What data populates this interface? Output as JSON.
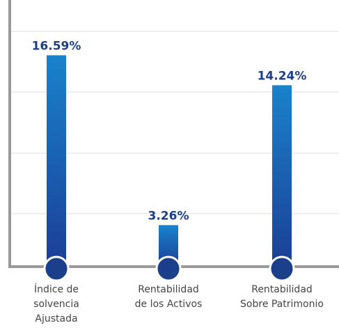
{
  "chart_data": {
    "type": "bar",
    "categories": [
      "Índice de\nsolvencia\nAjustada",
      "Rentabilidad\nde los Activos",
      "Rentabilidad\nSobre Patrimonio"
    ],
    "values": [
      16.59,
      3.26,
      14.24
    ],
    "value_labels": [
      "16.59%",
      "3.26%",
      "14.24%"
    ],
    "color": "#1a3f96",
    "ylim": [
      0,
      20
    ]
  }
}
